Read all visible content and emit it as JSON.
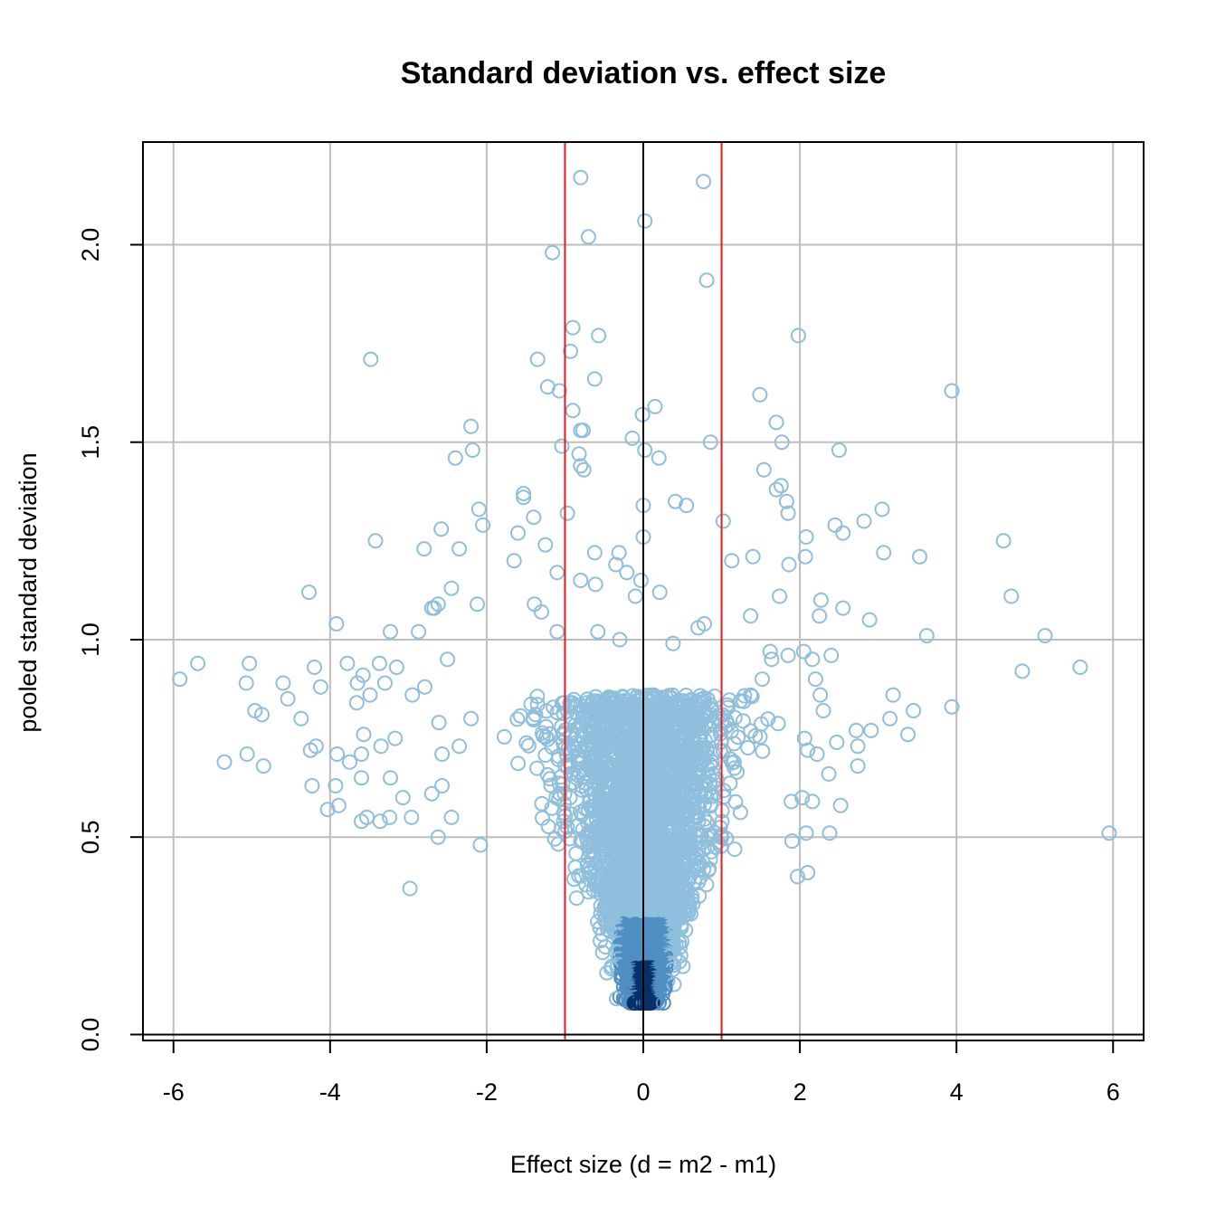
{
  "chart_data": {
    "type": "scatter",
    "title": "Standard deviation vs. effect size",
    "xlabel": "Effect size (d = m2 - m1)",
    "ylabel": "pooled standard deviation",
    "xlim": [
      -6.39,
      6.39
    ],
    "ylim": [
      -0.015,
      2.26
    ],
    "x_ticks": [
      -6,
      -4,
      -2,
      0,
      2,
      4,
      6
    ],
    "y_ticks": [
      0.0,
      0.5,
      1.0,
      1.5,
      2.0
    ],
    "x_tick_labels": [
      "-6",
      "-4",
      "-2",
      "0",
      "2",
      "4",
      "6"
    ],
    "y_tick_labels": [
      "0.0",
      "0.5",
      "1.0",
      "1.5",
      "2.0"
    ],
    "grid": true,
    "reference_lines": {
      "vertical": [
        {
          "x": -1,
          "color": "#e41a1c"
        },
        {
          "x": 0,
          "color": "#000000"
        },
        {
          "x": 1,
          "color": "#e41a1c"
        }
      ],
      "horizontal": [
        {
          "y": 0,
          "color": "#000000"
        }
      ]
    },
    "colors": {
      "point_light": "#8fbfdc",
      "point_mid": "#4f8fc2",
      "point_dark": "#08306b",
      "grid": "#bebebe",
      "significance_line": "#e41a1c",
      "zero_line": "#000000"
    },
    "outlier_points": [
      [
        -0.8,
        2.17
      ],
      [
        0.77,
        2.16
      ],
      [
        0.02,
        2.06
      ],
      [
        -0.7,
        2.02
      ],
      [
        -1.16,
        1.98
      ],
      [
        0.81,
        1.91
      ],
      [
        -0.9,
        1.79
      ],
      [
        -0.57,
        1.77
      ],
      [
        1.98,
        1.77
      ],
      [
        -0.93,
        1.73
      ],
      [
        -1.35,
        1.71
      ],
      [
        -3.48,
        1.71
      ],
      [
        -0.62,
        1.66
      ],
      [
        -1.22,
        1.64
      ],
      [
        -1.07,
        1.63
      ],
      [
        3.94,
        1.63
      ],
      [
        1.49,
        1.62
      ],
      [
        -0.9,
        1.58
      ],
      [
        0.15,
        1.59
      ],
      [
        -0.01,
        1.57
      ],
      [
        1.7,
        1.55
      ],
      [
        -2.2,
        1.54
      ],
      [
        -0.8,
        1.53
      ],
      [
        -0.77,
        1.53
      ],
      [
        -1.04,
        1.49
      ],
      [
        0.86,
        1.5
      ],
      [
        1.77,
        1.5
      ],
      [
        -0.14,
        1.51
      ],
      [
        0.02,
        1.48
      ],
      [
        -0.82,
        1.47
      ],
      [
        -2.4,
        1.46
      ],
      [
        -2.18,
        1.48
      ],
      [
        2.5,
        1.48
      ],
      [
        -0.8,
        1.44
      ],
      [
        -0.76,
        1.43
      ],
      [
        0.2,
        1.46
      ],
      [
        1.54,
        1.43
      ],
      [
        -1.53,
        1.37
      ],
      [
        1.76,
        1.39
      ],
      [
        1.7,
        1.38
      ],
      [
        -1.53,
        1.36
      ],
      [
        1.83,
        1.35
      ],
      [
        0.41,
        1.35
      ],
      [
        0.55,
        1.34
      ],
      [
        -2.1,
        1.33
      ],
      [
        1.85,
        1.32
      ],
      [
        3.05,
        1.33
      ],
      [
        0.0,
        1.34
      ],
      [
        -2.05,
        1.29
      ],
      [
        -0.97,
        1.32
      ],
      [
        -2.58,
        1.28
      ],
      [
        1.02,
        1.3
      ],
      [
        2.45,
        1.29
      ],
      [
        2.82,
        1.3
      ],
      [
        -1.4,
        1.31
      ],
      [
        2.08,
        1.26
      ],
      [
        2.55,
        1.27
      ],
      [
        4.6,
        1.25
      ],
      [
        -3.42,
        1.25
      ],
      [
        -1.25,
        1.24
      ],
      [
        -1.6,
        1.27
      ],
      [
        3.07,
        1.22
      ],
      [
        3.53,
        1.21
      ],
      [
        -2.8,
        1.23
      ],
      [
        -2.35,
        1.23
      ],
      [
        0.0,
        1.26
      ],
      [
        -0.62,
        1.22
      ],
      [
        -0.31,
        1.22
      ],
      [
        1.4,
        1.21
      ],
      [
        2.07,
        1.21
      ],
      [
        -1.65,
        1.2
      ],
      [
        -1.1,
        1.17
      ],
      [
        -0.35,
        1.19
      ],
      [
        -0.8,
        1.15
      ],
      [
        -0.21,
        1.17
      ],
      [
        -0.03,
        1.15
      ],
      [
        1.13,
        1.2
      ],
      [
        1.86,
        1.19
      ],
      [
        -4.27,
        1.12
      ],
      [
        -2.45,
        1.13
      ],
      [
        -0.61,
        1.14
      ],
      [
        4.7,
        1.11
      ],
      [
        2.27,
        1.1
      ],
      [
        1.74,
        1.11
      ],
      [
        -2.12,
        1.09
      ],
      [
        -1.39,
        1.09
      ],
      [
        -0.1,
        1.11
      ],
      [
        0.21,
        1.12
      ],
      [
        -2.7,
        1.08
      ],
      [
        -2.67,
        1.08
      ],
      [
        -2.62,
        1.09
      ],
      [
        -1.3,
        1.07
      ],
      [
        2.25,
        1.06
      ],
      [
        0.78,
        1.04
      ],
      [
        2.55,
        1.08
      ],
      [
        1.37,
        1.06
      ],
      [
        -3.92,
        1.04
      ],
      [
        -3.23,
        1.02
      ],
      [
        -2.87,
        1.02
      ],
      [
        -1.1,
        1.02
      ],
      [
        -0.58,
        1.02
      ],
      [
        0.7,
        1.03
      ],
      [
        2.89,
        1.05
      ],
      [
        3.62,
        1.01
      ],
      [
        5.13,
        1.01
      ],
      [
        -0.3,
        1.0
      ],
      [
        0.38,
        0.99
      ],
      [
        -5.69,
        0.94
      ],
      [
        -5.92,
        0.9
      ],
      [
        -5.03,
        0.94
      ],
      [
        -5.07,
        0.89
      ],
      [
        -4.6,
        0.89
      ],
      [
        -4.2,
        0.93
      ],
      [
        -4.12,
        0.88
      ],
      [
        -3.78,
        0.94
      ],
      [
        -3.65,
        0.89
      ],
      [
        -3.58,
        0.91
      ],
      [
        -3.37,
        0.94
      ],
      [
        -3.3,
        0.89
      ],
      [
        -3.15,
        0.93
      ],
      [
        -2.95,
        0.86
      ],
      [
        -2.79,
        0.88
      ],
      [
        -2.5,
        0.95
      ],
      [
        -4.87,
        0.81
      ],
      [
        -4.54,
        0.85
      ],
      [
        -4.96,
        0.82
      ],
      [
        -4.37,
        0.8
      ],
      [
        -3.57,
        0.76
      ],
      [
        -3.66,
        0.84
      ],
      [
        -3.49,
        0.86
      ],
      [
        -2.61,
        0.79
      ],
      [
        -2.2,
        0.8
      ],
      [
        -5.35,
        0.69
      ],
      [
        -5.06,
        0.71
      ],
      [
        -4.25,
        0.72
      ],
      [
        -4.18,
        0.73
      ],
      [
        -3.91,
        0.71
      ],
      [
        -3.75,
        0.69
      ],
      [
        -3.6,
        0.71
      ],
      [
        -3.35,
        0.73
      ],
      [
        -3.17,
        0.75
      ],
      [
        -2.57,
        0.71
      ],
      [
        -2.35,
        0.73
      ],
      [
        -4.85,
        0.68
      ],
      [
        -4.23,
        0.63
      ],
      [
        -3.93,
        0.63
      ],
      [
        -3.6,
        0.65
      ],
      [
        -3.23,
        0.65
      ],
      [
        -3.07,
        0.6
      ],
      [
        -2.7,
        0.61
      ],
      [
        -2.57,
        0.63
      ],
      [
        -4.03,
        0.57
      ],
      [
        -3.89,
        0.58
      ],
      [
        -3.6,
        0.54
      ],
      [
        -3.53,
        0.55
      ],
      [
        -3.36,
        0.54
      ],
      [
        -3.24,
        0.55
      ],
      [
        -2.96,
        0.55
      ],
      [
        -2.45,
        0.55
      ],
      [
        -2.62,
        0.5
      ],
      [
        -2.08,
        0.48
      ],
      [
        -2.98,
        0.37
      ],
      [
        5.58,
        0.93
      ],
      [
        4.84,
        0.92
      ],
      [
        3.94,
        0.83
      ],
      [
        3.45,
        0.82
      ],
      [
        3.19,
        0.86
      ],
      [
        3.38,
        0.76
      ],
      [
        3.15,
        0.8
      ],
      [
        2.91,
        0.77
      ],
      [
        2.74,
        0.73
      ],
      [
        2.74,
        0.68
      ],
      [
        2.72,
        0.77
      ],
      [
        2.47,
        0.74
      ],
      [
        2.3,
        0.82
      ],
      [
        2.37,
        0.66
      ],
      [
        2.52,
        0.58
      ],
      [
        2.38,
        0.51
      ],
      [
        5.95,
        0.51
      ],
      [
        2.1,
        0.72
      ],
      [
        2.22,
        0.71
      ],
      [
        2.06,
        0.75
      ],
      [
        2.16,
        0.59
      ],
      [
        2.03,
        0.6
      ],
      [
        2.08,
        0.51
      ],
      [
        1.89,
        0.59
      ],
      [
        2.1,
        0.41
      ],
      [
        1.97,
        0.4
      ],
      [
        1.9,
        0.49
      ],
      [
        2.2,
        0.9
      ],
      [
        2.05,
        0.97
      ],
      [
        2.16,
        0.95
      ],
      [
        2.26,
        0.86
      ],
      [
        2.4,
        0.96
      ],
      [
        1.85,
        0.96
      ],
      [
        1.64,
        0.95
      ],
      [
        1.52,
        0.9
      ],
      [
        1.62,
        0.97
      ]
    ]
  }
}
